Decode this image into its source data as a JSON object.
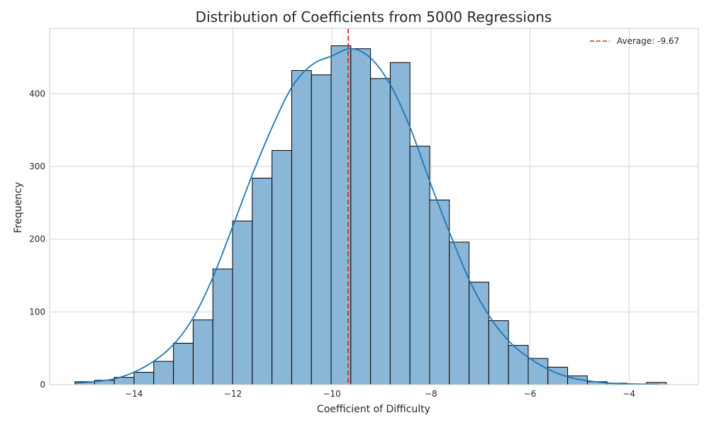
{
  "chart_data": {
    "type": "bar",
    "subtype": "histogram",
    "title": "Distribution of Coefficients from 5000 Regressions",
    "xlabel": "Coefficient of Difficulty",
    "ylabel": "Frequency",
    "xlim": [
      -15.7,
      -2.6
    ],
    "ylim": [
      0,
      490
    ],
    "xticks": [
      -14,
      -12,
      -10,
      -8,
      -6,
      -4
    ],
    "xtick_labels": [
      "−14",
      "−12",
      "−10",
      "−8",
      "−6",
      "−4"
    ],
    "yticks": [
      0,
      100,
      200,
      300,
      400
    ],
    "ytick_labels": [
      "0",
      "100",
      "200",
      "300",
      "400"
    ],
    "grid": true,
    "legend_position": "top-right",
    "colors": {
      "bar_fill": "#8ab6d8",
      "bar_edge": "#000000",
      "kde_line": "#1f77b4",
      "mean_line": "#d62728",
      "grid": "#d3d3d3"
    },
    "bins": {
      "left_edge": -15.19,
      "width": 0.398,
      "counts": [
        4,
        6,
        10,
        17,
        32,
        57,
        89,
        159,
        225,
        284,
        322,
        432,
        426,
        466,
        462,
        421,
        443,
        328,
        254,
        196,
        141,
        88,
        54,
        36,
        24,
        12,
        4,
        2,
        1,
        3
      ]
    },
    "kde": {
      "x": [
        -15.19,
        -14.79,
        -14.39,
        -14.0,
        -13.6,
        -13.2,
        -12.8,
        -12.4,
        -12.0,
        -11.6,
        -11.2,
        -10.8,
        -10.4,
        -10.0,
        -9.6,
        -9.2,
        -8.8,
        -8.4,
        -8.0,
        -7.6,
        -7.2,
        -6.8,
        -6.4,
        -6.0,
        -5.6,
        -5.2,
        -4.8,
        -4.4,
        -4.0,
        -3.6,
        -3.4
      ],
      "y": [
        2,
        4,
        8,
        17,
        32,
        55,
        92,
        148,
        218,
        290,
        355,
        410,
        440,
        452,
        462,
        448,
        410,
        350,
        275,
        205,
        140,
        92,
        58,
        36,
        20,
        10,
        5,
        2,
        1,
        0.5,
        0.3
      ]
    },
    "mean": {
      "value": -9.67,
      "label": "Average: -9.67"
    }
  }
}
